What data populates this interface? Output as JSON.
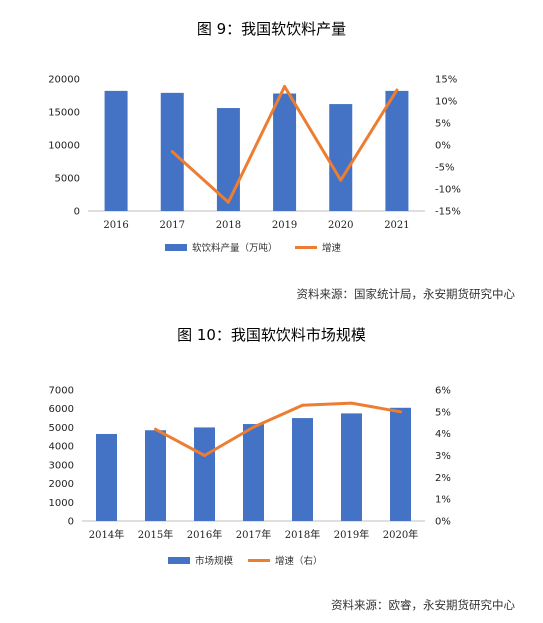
{
  "colors": {
    "bar": "#4472C4",
    "line": "#ED7D31"
  },
  "chart_data": [
    {
      "type": "bar",
      "title": "图 9：我国软饮料产量",
      "categories": [
        "2016",
        "2017",
        "2018",
        "2019",
        "2020",
        "2021"
      ],
      "series": [
        {
          "name": "软饮料产量（万吨）",
          "type": "bar",
          "axis": "left",
          "values": [
            18200,
            17900,
            15600,
            17800,
            16200,
            18200
          ]
        },
        {
          "name": "增速",
          "type": "line",
          "axis": "right",
          "values": [
            null,
            -1.5,
            -13,
            13.3,
            -8,
            12.5
          ]
        }
      ],
      "yticks_left": [
        "20000",
        "15000",
        "10000",
        "5000",
        "0"
      ],
      "ylim_left": [
        0,
        20000
      ],
      "yticks_right": [
        "15%",
        "10%",
        "5%",
        "0%",
        "-5%",
        "-10%",
        "-15%"
      ],
      "ylim_right": [
        -15,
        15
      ],
      "legend_position": "bottom",
      "grid": false,
      "source": "资料来源：国家统计局，永安期货研究中心"
    },
    {
      "type": "bar",
      "title": "图 10：我国软饮料市场规模",
      "categories": [
        "2014年",
        "2015年",
        "2016年",
        "2017年",
        "2018年",
        "2019年",
        "2020年"
      ],
      "series": [
        {
          "name": "市场规模",
          "type": "bar",
          "axis": "left",
          "values": [
            4650,
            4850,
            5000,
            5180,
            5500,
            5750,
            6050
          ]
        },
        {
          "name": "增速（右）",
          "type": "line",
          "axis": "right",
          "values": [
            null,
            4.2,
            3.0,
            4.3,
            5.3,
            5.4,
            5.0
          ]
        }
      ],
      "yticks_left": [
        "7000",
        "6000",
        "5000",
        "4000",
        "3000",
        "2000",
        "1000",
        "0"
      ],
      "ylim_left": [
        0,
        7000
      ],
      "yticks_right": [
        "6%",
        "5%",
        "4%",
        "3%",
        "2%",
        "1%",
        "0%"
      ],
      "ylim_right": [
        0,
        6
      ],
      "legend_position": "bottom",
      "grid": false,
      "source": "资料来源：欧睿，永安期货研究中心"
    }
  ]
}
